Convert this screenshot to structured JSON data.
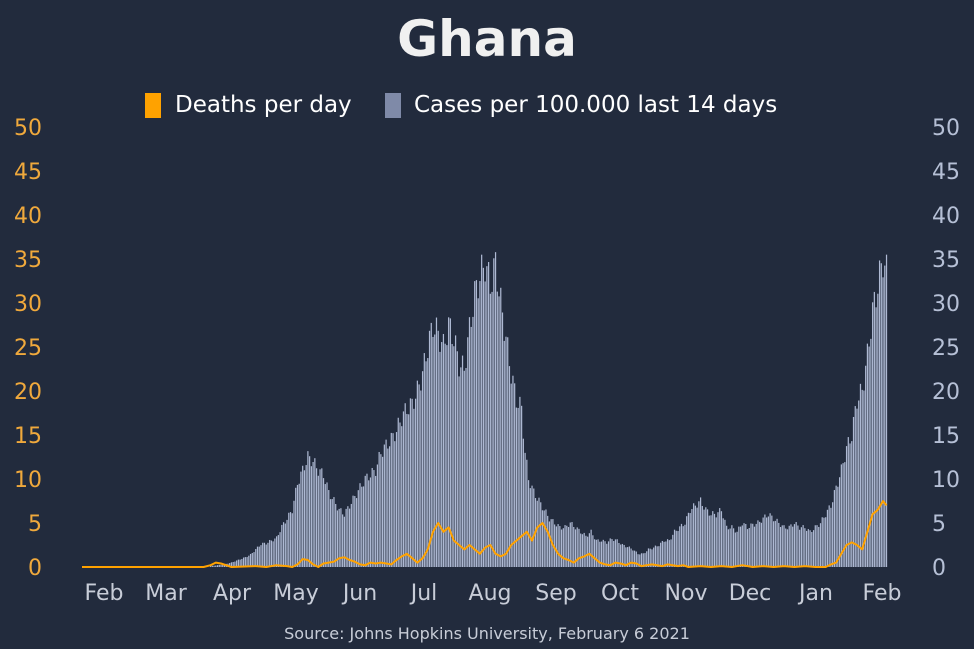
{
  "chart_data": {
    "type": "bar",
    "title": "Ghana",
    "source": "Source: Johns Hopkins University, February 6 2021",
    "left_axis": {
      "ylim": [
        0,
        50
      ],
      "ticks": [
        0,
        5,
        10,
        15,
        20,
        25,
        30,
        35,
        40,
        45,
        50
      ],
      "color": "#f0a93c"
    },
    "right_axis": {
      "ylim": [
        0,
        50
      ],
      "ticks": [
        0,
        5,
        10,
        15,
        20,
        25,
        30,
        35,
        40,
        45,
        50
      ],
      "color": "#b6c0d6"
    },
    "x_ticks": [
      "Feb",
      "Mar",
      "Apr",
      "May",
      "Jun",
      "Jul",
      "Aug",
      "Sep",
      "Oct",
      "Nov",
      "Dec",
      "Jan",
      "Feb"
    ],
    "colors": {
      "background": "#222b3d",
      "bars": "#aeb9d3",
      "line": "#ffa200",
      "title": "#f0f0f0",
      "tick_x": "#c8cdd8",
      "source": "#c8cdd8"
    },
    "legend": {
      "placement": "top-center",
      "items": [
        {
          "label": "Deaths per day",
          "color": "#ffa200"
        },
        {
          "label": "Cases per 100.000 last 14 days",
          "color": "#7f8aa8"
        }
      ]
    },
    "series": [
      {
        "name": "Cases per 100.000 last 14 days",
        "kind": "bar",
        "axis": "right",
        "points": [
          [
            74,
            0.1
          ],
          [
            78,
            0.2
          ],
          [
            82,
            0.3
          ],
          [
            86,
            0.5
          ],
          [
            90,
            0.8
          ],
          [
            94,
            1.1
          ],
          [
            97,
            1.4
          ],
          [
            100,
            2.0
          ],
          [
            103,
            2.6
          ],
          [
            106,
            2.7
          ],
          [
            109,
            3.0
          ],
          [
            112,
            3.3
          ],
          [
            115,
            4.6
          ],
          [
            118,
            5.5
          ],
          [
            121,
            6.5
          ],
          [
            124,
            9.5
          ],
          [
            127,
            11.0
          ],
          [
            130,
            12.5
          ],
          [
            133,
            12.0
          ],
          [
            136,
            11.0
          ],
          [
            139,
            10.5
          ],
          [
            142,
            8.5
          ],
          [
            145,
            7.5
          ],
          [
            148,
            6.5
          ],
          [
            151,
            6.0
          ],
          [
            154,
            7.0
          ],
          [
            157,
            8.0
          ],
          [
            160,
            9.0
          ],
          [
            163,
            10.0
          ],
          [
            166,
            10.5
          ],
          [
            169,
            11.0
          ],
          [
            172,
            13.0
          ],
          [
            175,
            13.8
          ],
          [
            178,
            14.5
          ],
          [
            181,
            15.5
          ],
          [
            184,
            17.0
          ],
          [
            187,
            18.0
          ],
          [
            190,
            18.5
          ],
          [
            193,
            20.0
          ],
          [
            196,
            22.0
          ],
          [
            199,
            25.0
          ],
          [
            202,
            27.5
          ],
          [
            205,
            26.5
          ],
          [
            208,
            25.0
          ],
          [
            211,
            27.5
          ],
          [
            214,
            26.0
          ],
          [
            217,
            23.0
          ],
          [
            220,
            22.5
          ],
          [
            223,
            27.0
          ],
          [
            226,
            31.0
          ],
          [
            229,
            33.0
          ],
          [
            232,
            34.5
          ],
          [
            235,
            32.0
          ],
          [
            238,
            34.5
          ],
          [
            241,
            30.0
          ],
          [
            244,
            26.0
          ],
          [
            247,
            22.0
          ],
          [
            250,
            19.0
          ],
          [
            253,
            18.0
          ],
          [
            255,
            13.0
          ],
          [
            257,
            10.0
          ],
          [
            260,
            8.5
          ],
          [
            263,
            7.5
          ],
          [
            266,
            6.5
          ],
          [
            269,
            5.5
          ],
          [
            272,
            5.0
          ],
          [
            275,
            4.5
          ],
          [
            278,
            4.5
          ],
          [
            281,
            5.0
          ],
          [
            284,
            4.5
          ],
          [
            287,
            4.0
          ],
          [
            290,
            3.5
          ],
          [
            293,
            4.0
          ],
          [
            296,
            3.0
          ],
          [
            299,
            3.0
          ],
          [
            302,
            2.8
          ],
          [
            305,
            3.2
          ],
          [
            308,
            3.0
          ],
          [
            311,
            2.5
          ],
          [
            314,
            2.3
          ],
          [
            317,
            2.0
          ],
          [
            320,
            1.5
          ],
          [
            323,
            1.5
          ],
          [
            326,
            2.0
          ],
          [
            329,
            2.2
          ],
          [
            332,
            2.5
          ],
          [
            335,
            3.0
          ],
          [
            338,
            3.0
          ],
          [
            341,
            4.0
          ],
          [
            344,
            4.5
          ],
          [
            347,
            5.0
          ],
          [
            350,
            6.5
          ],
          [
            353,
            7.0
          ],
          [
            356,
            7.5
          ],
          [
            359,
            6.5
          ],
          [
            362,
            6.0
          ],
          [
            365,
            6.0
          ],
          [
            368,
            6.5
          ],
          [
            371,
            4.5
          ],
          [
            374,
            4.5
          ],
          [
            377,
            4.0
          ],
          [
            380,
            5.0
          ],
          [
            383,
            4.5
          ],
          [
            386,
            4.8
          ],
          [
            389,
            5.0
          ],
          [
            392,
            5.5
          ],
          [
            395,
            6.0
          ],
          [
            398,
            5.5
          ],
          [
            401,
            5.0
          ],
          [
            404,
            4.5
          ],
          [
            407,
            4.5
          ],
          [
            410,
            5.0
          ],
          [
            413,
            4.5
          ],
          [
            416,
            4.5
          ],
          [
            419,
            4.0
          ],
          [
            422,
            4.5
          ],
          [
            425,
            5.0
          ],
          [
            428,
            6.0
          ],
          [
            431,
            7.0
          ],
          [
            434,
            9.0
          ],
          [
            437,
            11.0
          ],
          [
            440,
            13.5
          ],
          [
            443,
            15.0
          ],
          [
            446,
            19.0
          ],
          [
            449,
            20.0
          ],
          [
            452,
            24.0
          ],
          [
            455,
            29.0
          ],
          [
            458,
            32.0
          ],
          [
            461,
            35.0
          ],
          [
            463,
            33.5
          ]
        ]
      },
      {
        "name": "Deaths per day",
        "kind": "line",
        "axis": "left",
        "points": [
          [
            0,
            0
          ],
          [
            70,
            0
          ],
          [
            74,
            0.2
          ],
          [
            77,
            0.5
          ],
          [
            80,
            0.4
          ],
          [
            83,
            0.2
          ],
          [
            86,
            0
          ],
          [
            100,
            0.1
          ],
          [
            106,
            0
          ],
          [
            112,
            0.2
          ],
          [
            118,
            0.1
          ],
          [
            121,
            0
          ],
          [
            124,
            0.3
          ],
          [
            127,
            0.9
          ],
          [
            130,
            0.8
          ],
          [
            133,
            0.3
          ],
          [
            136,
            0
          ],
          [
            139,
            0.4
          ],
          [
            142,
            0.5
          ],
          [
            145,
            0.6
          ],
          [
            148,
            1.0
          ],
          [
            151,
            1.1
          ],
          [
            154,
            0.8
          ],
          [
            157,
            0.6
          ],
          [
            160,
            0.3
          ],
          [
            163,
            0.2
          ],
          [
            166,
            0.5
          ],
          [
            169,
            0.4
          ],
          [
            172,
            0.5
          ],
          [
            175,
            0.4
          ],
          [
            178,
            0.3
          ],
          [
            181,
            0.8
          ],
          [
            184,
            1.2
          ],
          [
            187,
            1.5
          ],
          [
            190,
            1.0
          ],
          [
            193,
            0.5
          ],
          [
            196,
            1.0
          ],
          [
            199,
            2.0
          ],
          [
            202,
            4.0
          ],
          [
            205,
            5.0
          ],
          [
            208,
            4.0
          ],
          [
            211,
            4.5
          ],
          [
            214,
            3.0
          ],
          [
            217,
            2.5
          ],
          [
            220,
            2.0
          ],
          [
            223,
            2.5
          ],
          [
            226,
            2.0
          ],
          [
            229,
            1.5
          ],
          [
            232,
            2.2
          ],
          [
            235,
            2.5
          ],
          [
            238,
            1.5
          ],
          [
            241,
            1.2
          ],
          [
            244,
            1.5
          ],
          [
            247,
            2.5
          ],
          [
            250,
            3.0
          ],
          [
            253,
            3.5
          ],
          [
            256,
            4.0
          ],
          [
            259,
            3.0
          ],
          [
            262,
            4.5
          ],
          [
            265,
            5.0
          ],
          [
            268,
            4.0
          ],
          [
            271,
            2.5
          ],
          [
            274,
            1.5
          ],
          [
            277,
            1.0
          ],
          [
            280,
            0.8
          ],
          [
            283,
            0.5
          ],
          [
            286,
            1.0
          ],
          [
            289,
            1.2
          ],
          [
            292,
            1.5
          ],
          [
            295,
            1.0
          ],
          [
            298,
            0.5
          ],
          [
            301,
            0.3
          ],
          [
            304,
            0.2
          ],
          [
            307,
            0.5
          ],
          [
            310,
            0.4
          ],
          [
            313,
            0.2
          ],
          [
            316,
            0.5
          ],
          [
            319,
            0.4
          ],
          [
            322,
            0.1
          ],
          [
            325,
            0.2
          ],
          [
            328,
            0.3
          ],
          [
            331,
            0.2
          ],
          [
            334,
            0.1
          ],
          [
            337,
            0.3
          ],
          [
            340,
            0.2
          ],
          [
            343,
            0.1
          ],
          [
            346,
            0.2
          ],
          [
            349,
            0
          ],
          [
            356,
            0.1
          ],
          [
            362,
            0
          ],
          [
            368,
            0.1
          ],
          [
            374,
            0
          ],
          [
            380,
            0.2
          ],
          [
            386,
            0
          ],
          [
            392,
            0.1
          ],
          [
            398,
            0
          ],
          [
            404,
            0.1
          ],
          [
            410,
            0
          ],
          [
            416,
            0.1
          ],
          [
            422,
            0
          ],
          [
            428,
            0
          ],
          [
            431,
            0.3
          ],
          [
            434,
            0.5
          ],
          [
            437,
            1.5
          ],
          [
            440,
            2.5
          ],
          [
            443,
            2.8
          ],
          [
            446,
            2.5
          ],
          [
            449,
            2.0
          ],
          [
            452,
            4.0
          ],
          [
            455,
            6.0
          ],
          [
            458,
            6.5
          ],
          [
            461,
            7.5
          ],
          [
            463,
            7.0
          ]
        ]
      }
    ]
  }
}
